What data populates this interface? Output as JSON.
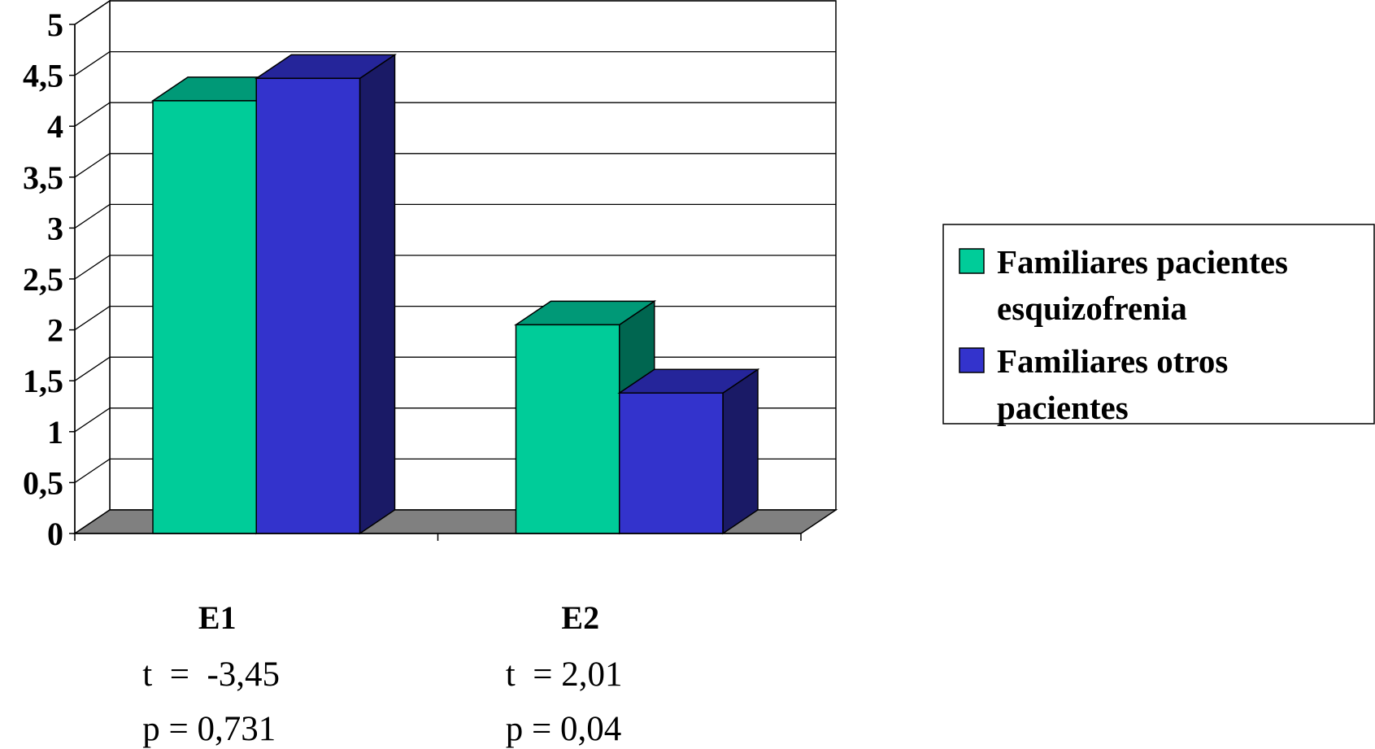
{
  "chart_data": {
    "type": "bar",
    "categories": [
      "E1",
      "E2"
    ],
    "series": [
      {
        "name": "Familiares pacientes esquizofrenia",
        "legend_lines": [
          "Familiares pacientes",
          "esquizofrenia"
        ],
        "values": [
          4.25,
          2.05
        ],
        "color": "#00cc99",
        "top_color": "#009977",
        "side_color": "#006650"
      },
      {
        "name": "Familiares otros pacientes",
        "legend_lines": [
          "Familiares otros",
          "pacientes"
        ],
        "values": [
          4.47,
          1.38
        ],
        "color": "#3333cc",
        "top_color": "#25259a",
        "side_color": "#1a1a66"
      }
    ],
    "y_ticks": [
      "0",
      "0,5",
      "1",
      "1,5",
      "2",
      "2,5",
      "3",
      "3,5",
      "4",
      "4,5",
      "5"
    ],
    "ylim": [
      0,
      5
    ],
    "grid": true,
    "legend_position": "right",
    "floor_color": "#808080",
    "annotations": [
      {
        "category": "E1",
        "lines": [
          "t  =  -3,45",
          "p = 0,731"
        ]
      },
      {
        "category": "E2",
        "lines": [
          "t  = 2,01",
          "p = 0,04"
        ]
      }
    ]
  }
}
